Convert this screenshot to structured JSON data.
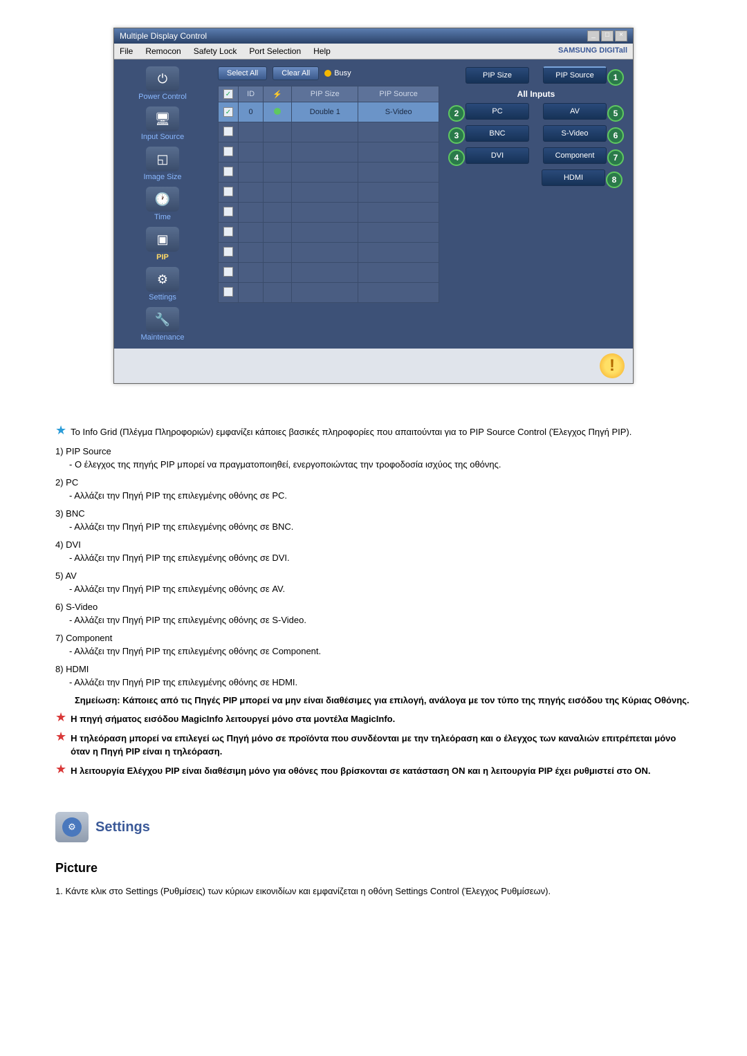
{
  "window": {
    "title": "Multiple Display Control"
  },
  "menu": {
    "file": "File",
    "remocon": "Remocon",
    "safety_lock": "Safety Lock",
    "port_selection": "Port Selection",
    "help": "Help",
    "brand": "SAMSUNG DIGITall"
  },
  "sidebar": {
    "power_control": "Power Control",
    "input_source": "Input Source",
    "image_size": "Image Size",
    "time": "Time",
    "pip": "PIP",
    "settings": "Settings",
    "maintenance": "Maintenance"
  },
  "toolbar": {
    "select_all": "Select All",
    "clear_all": "Clear All",
    "busy": "Busy"
  },
  "grid": {
    "headers": {
      "chk": "",
      "id": "ID",
      "status": "",
      "pip_size": "PIP Size",
      "pip_source": "PIP Source"
    },
    "row": {
      "id": "0",
      "pip_size": "Double 1",
      "pip_source": "S-Video"
    }
  },
  "panel": {
    "pip_size": "PIP Size",
    "pip_source": "PIP Source",
    "all_inputs": "All Inputs",
    "pc": "PC",
    "bnc": "BNC",
    "dvi": "DVI",
    "av": "AV",
    "svideo": "S-Video",
    "component": "Component",
    "hdmi": "HDMI"
  },
  "badges": {
    "b1": "1",
    "b2": "2",
    "b3": "3",
    "b4": "4",
    "b5": "5",
    "b6": "6",
    "b7": "7",
    "b8": "8"
  },
  "doc": {
    "intro": "Το Info Grid (Πλέγμα Πληροφοριών) εμφανίζει κάποιες βασικές πληροφορίες που απαιτούνται για το PIP Source Control (Έλεγχος Πηγή PIP).",
    "i1_lbl": "1)  PIP Source",
    "i1_desc": "- Ο έλεγχος της πηγής PIP μπορεί να πραγματοποιηθεί, ενεργοποιώντας την τροφοδοσία ισχύος της οθόνης.",
    "i2_lbl": "2)  PC",
    "i2_desc": "- Αλλάζει την Πηγή PIP της επιλεγμένης οθόνης σε PC.",
    "i3_lbl": "3)  BNC",
    "i3_desc": "- Αλλάζει την Πηγή PIP της επιλεγμένης οθόνης σε BNC.",
    "i4_lbl": "4)  DVI",
    "i4_desc": "- Αλλάζει την Πηγή PIP της επιλεγμένης οθόνης σε DVI.",
    "i5_lbl": "5)  AV",
    "i5_desc": "- Αλλάζει την Πηγή PIP της επιλεγμένης οθόνης σε AV.",
    "i6_lbl": "6)  S-Video",
    "i6_desc": "- Αλλάζει την Πηγή PIP της επιλεγμένης οθόνης σε S-Video.",
    "i7_lbl": "7)  Component",
    "i7_desc": "- Αλλάζει την Πηγή PIP της επιλεγμένης οθόνης σε Component.",
    "i8_lbl": "8)  HDMI",
    "i8_desc": "- Αλλάζει την Πηγή PIP της επιλεγμένης οθόνης σε HDMI.",
    "note": "Σημείωση: Κάποιες από τις Πηγές PIP μπορεί να μην είναι διαθέσιμες για επιλογή, ανάλογα με τον τύπο της πηγής εισόδου της Κύριας Οθόνης.",
    "star1": "Η πηγή σήματος εισόδου MagicInfo λειτουργεί μόνο στα μοντέλα MagicInfo.",
    "star2": "Η τηλεόραση μπορεί να επιλεγεί ως Πηγή μόνο σε προϊόντα που συνδέονται με την τηλεόραση και ο έλεγχος των καναλιών επιτρέπεται μόνο όταν η Πηγή PIP είναι η τηλεόραση.",
    "star3": "Η λειτουργία Ελέγχου PIP είναι διαθέσιμη μόνο για οθόνες που βρίσκονται σε κατάσταση ON και η λειτουργία PIP έχει ρυθμιστεί στο ON."
  },
  "settings_section": {
    "title": "Settings",
    "sub": "Picture",
    "item1": "1.  Κάντε κλικ στο Settings (Ρυθμίσεις) των κύριων εικονιδίων και εμφανίζεται η οθόνη Settings Control (Έλεγχος Ρυθμίσεων)."
  }
}
